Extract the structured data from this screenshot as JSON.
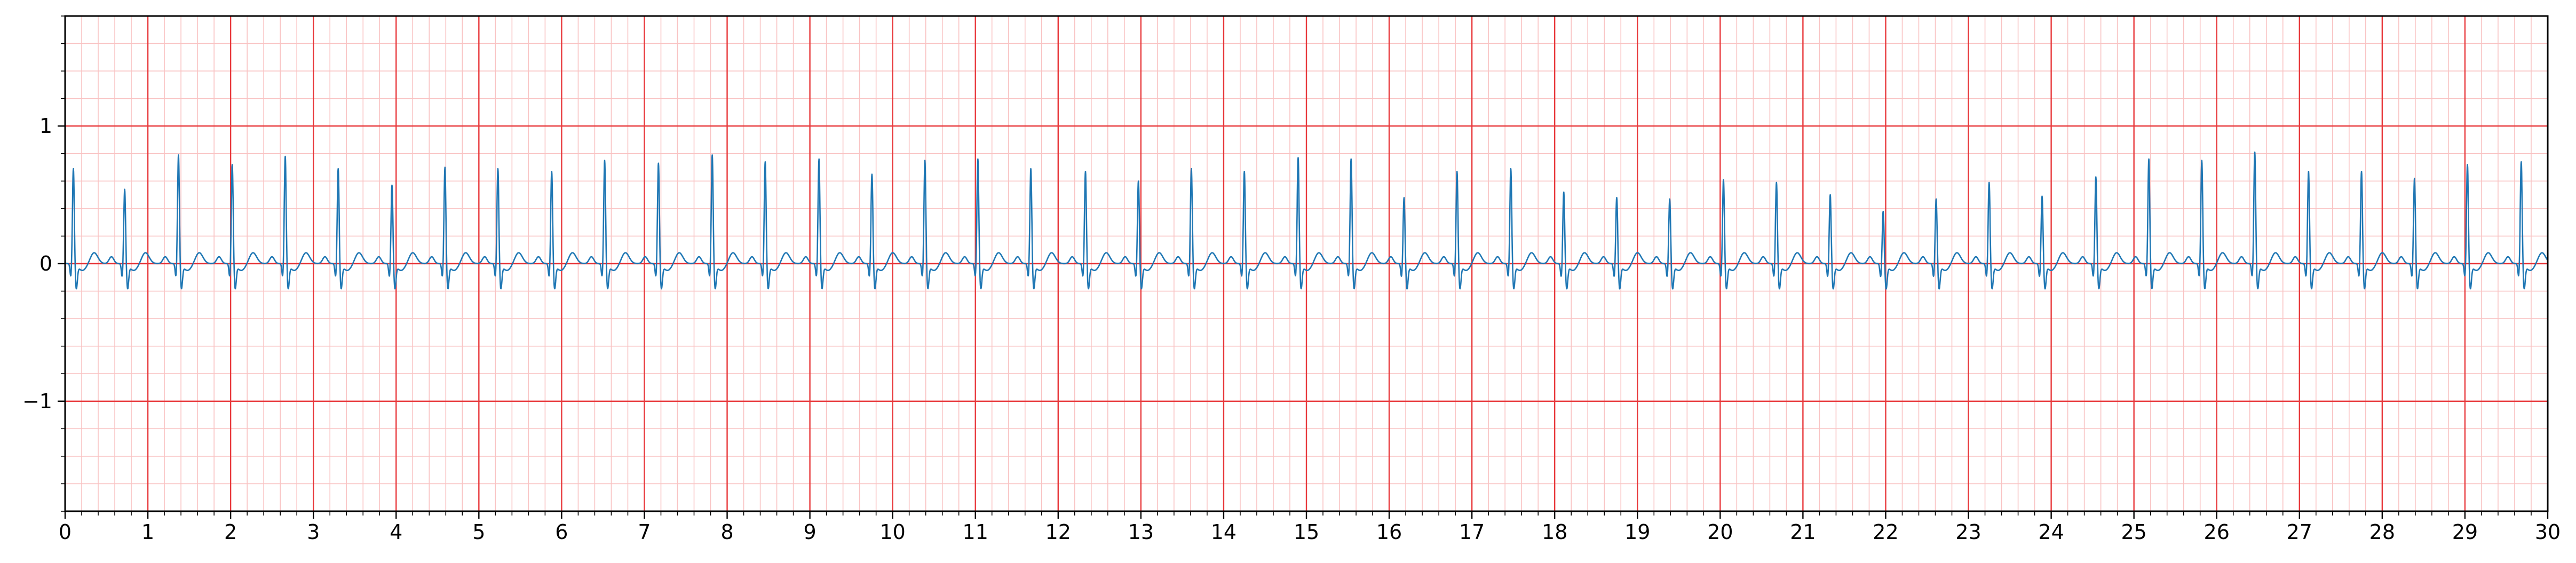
{
  "chart_data": {
    "type": "line",
    "title": "",
    "xlabel": "",
    "ylabel": "",
    "xlim": [
      0,
      30
    ],
    "ylim": [
      -1.8,
      1.8
    ],
    "x_ticks": [
      0,
      1,
      2,
      3,
      4,
      5,
      6,
      7,
      8,
      9,
      10,
      11,
      12,
      13,
      14,
      15,
      16,
      17,
      18,
      19,
      20,
      21,
      22,
      23,
      24,
      25,
      26,
      27,
      28,
      29,
      30
    ],
    "x_tick_labels": [
      "0",
      "1",
      "2",
      "3",
      "4",
      "5",
      "6",
      "7",
      "8",
      "9",
      "10",
      "11",
      "12",
      "13",
      "14",
      "15",
      "16",
      "17",
      "18",
      "19",
      "20",
      "21",
      "22",
      "23",
      "24",
      "25",
      "26",
      "27",
      "28",
      "29",
      "30"
    ],
    "y_ticks": [
      -1,
      0,
      1
    ],
    "y_tick_labels": [
      "−1",
      "0",
      "1"
    ],
    "grid": {
      "major_x_step": 1,
      "minor_x_step": 0.2,
      "major_y_step": 1,
      "minor_y_step": 0.2,
      "major_color": "#e8393c",
      "minor_color": "#f9c3c3"
    },
    "series": [
      {
        "color": "#1f77b4",
        "baseline": 0.0,
        "r_peak_times": [
          0.1,
          0.72,
          1.37,
          2.02,
          2.66,
          3.3,
          3.95,
          4.59,
          5.23,
          5.88,
          6.52,
          7.17,
          7.82,
          8.46,
          9.11,
          9.75,
          10.39,
          11.03,
          11.67,
          12.33,
          12.97,
          13.61,
          14.25,
          14.9,
          15.54,
          16.18,
          16.82,
          17.47,
          18.11,
          18.75,
          19.39,
          20.04,
          20.68,
          21.33,
          21.97,
          22.61,
          23.25,
          23.89,
          24.54,
          25.18,
          25.82,
          26.46,
          27.11,
          27.75,
          28.39,
          29.03,
          29.68
        ],
        "r_peak_values": [
          0.6,
          0.45,
          0.7,
          0.63,
          0.69,
          0.6,
          0.48,
          0.61,
          0.6,
          0.58,
          0.66,
          0.64,
          0.7,
          0.65,
          0.67,
          0.56,
          0.66,
          0.67,
          0.6,
          0.58,
          0.51,
          0.6,
          0.58,
          0.68,
          0.67,
          0.39,
          0.58,
          0.6,
          0.43,
          0.39,
          0.38,
          0.52,
          0.5,
          0.41,
          0.29,
          0.38,
          0.5,
          0.4,
          0.54,
          0.67,
          0.66,
          0.72,
          0.58,
          0.58,
          0.53,
          0.63,
          0.65
        ]
      }
    ]
  }
}
